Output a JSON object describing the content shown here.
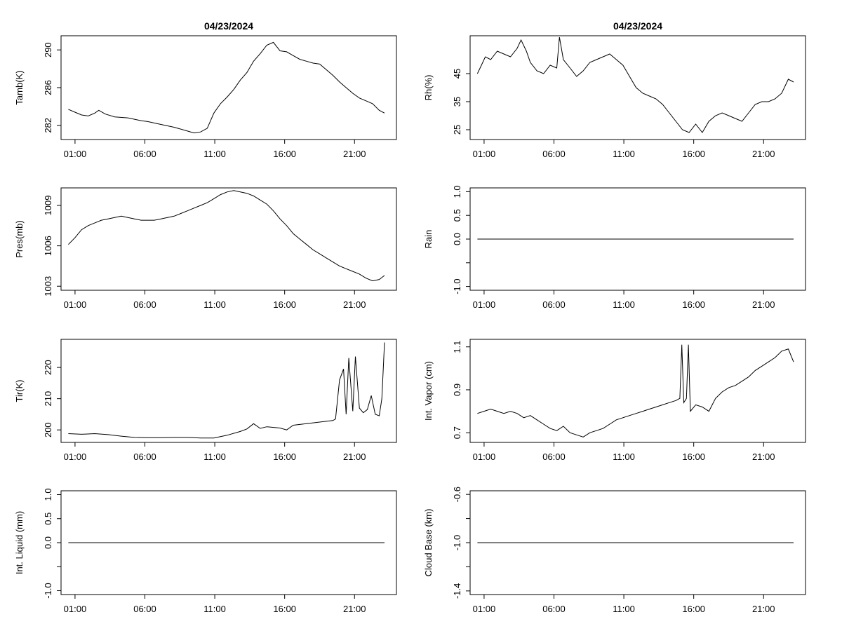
{
  "page": {
    "background": "#ffffff",
    "line_color": "#000000"
  },
  "chart_data": [
    {
      "type": "line",
      "title": "04/23/2024",
      "ylabel": "Tamb(K)",
      "xlim": [
        0,
        24
      ],
      "ylim": [
        280.5,
        291.5
      ],
      "xticks": [
        1,
        6,
        11,
        16,
        21
      ],
      "xtick_labels": [
        "01:00",
        "06:00",
        "11:00",
        "16:00",
        "21:00"
      ],
      "yticks": [
        282,
        286,
        290
      ],
      "ytick_labels": [
        "282",
        "286",
        "290"
      ],
      "series": [
        {
          "x": [
            0,
            0.5,
            1,
            1.5,
            2,
            2.3,
            2.8,
            3.5,
            4.5,
            5.5,
            6,
            7,
            8,
            9,
            9.5,
            10,
            10.5,
            11,
            11.5,
            12,
            12.5,
            13,
            13.5,
            14,
            14.5,
            15,
            15.5,
            16,
            16.5,
            17,
            17.5,
            18,
            18.5,
            19,
            19.5,
            20,
            20.5,
            21,
            21.5,
            22,
            22.5,
            23,
            23.5,
            23.9
          ],
          "y": [
            283.7,
            283.4,
            283.1,
            283.0,
            283.3,
            283.6,
            283.2,
            282.9,
            282.8,
            282.5,
            282.4,
            282.1,
            281.8,
            281.4,
            281.2,
            281.3,
            281.7,
            283.3,
            284.3,
            285.0,
            285.8,
            286.8,
            287.6,
            288.8,
            289.6,
            290.5,
            290.8,
            289.9,
            289.8,
            289.4,
            289.0,
            288.8,
            288.6,
            288.5,
            287.9,
            287.3,
            286.6,
            286.0,
            285.4,
            284.9,
            284.6,
            284.3,
            283.6,
            283.3
          ]
        }
      ]
    },
    {
      "type": "line",
      "title": "04/23/2024",
      "ylabel": "Rh(%)",
      "xlim": [
        0,
        24
      ],
      "ylim": [
        21.5,
        58.5
      ],
      "xticks": [
        1,
        6,
        11,
        16,
        21
      ],
      "xtick_labels": [
        "01:00",
        "06:00",
        "11:00",
        "16:00",
        "21:00"
      ],
      "yticks": [
        25,
        35,
        45
      ],
      "ytick_labels": [
        "25",
        "35",
        "45"
      ],
      "series": [
        {
          "x": [
            0,
            0.3,
            0.6,
            1,
            1.5,
            2,
            2.5,
            3,
            3.3,
            3.7,
            4,
            4.5,
            5,
            5.5,
            6,
            6.2,
            6.5,
            7,
            7.5,
            8,
            8.5,
            9,
            9.5,
            10,
            10.5,
            11,
            11.5,
            12,
            12.5,
            13,
            13.5,
            14,
            14.5,
            15,
            15.5,
            16,
            16.5,
            17,
            17.5,
            18,
            18.5,
            19,
            19.5,
            20,
            20.5,
            21,
            21.5,
            22,
            22.5,
            23,
            23.5,
            23.9
          ],
          "y": [
            45,
            48,
            51,
            50,
            53,
            52,
            51,
            54,
            57,
            53,
            49,
            46,
            45,
            48,
            47,
            58,
            50,
            47,
            44,
            46,
            49,
            50,
            51,
            52,
            50,
            48,
            44,
            40,
            38,
            37,
            36,
            34,
            31,
            28,
            25,
            24,
            27,
            24,
            28,
            30,
            31,
            30,
            29,
            28,
            31,
            34,
            35,
            35,
            36,
            38,
            43,
            42
          ]
        }
      ]
    },
    {
      "type": "line",
      "ylabel": "Pres(mb)",
      "xlim": [
        0,
        24
      ],
      "ylim": [
        1002.7,
        1010.3
      ],
      "xticks": [
        1,
        6,
        11,
        16,
        21
      ],
      "xtick_labels": [
        "01:00",
        "06:00",
        "11:00",
        "16:00",
        "21:00"
      ],
      "yticks": [
        1003,
        1006,
        1009
      ],
      "ytick_labels": [
        "1003",
        "1006",
        "1009"
      ],
      "series": [
        {
          "x": [
            0,
            0.5,
            1,
            1.5,
            2,
            2.5,
            3,
            3.5,
            4,
            4.5,
            5,
            5.5,
            6,
            6.5,
            7,
            7.5,
            8,
            8.5,
            9,
            9.5,
            10,
            10.5,
            11,
            11.5,
            12,
            12.5,
            13,
            13.5,
            14,
            14.5,
            15,
            15.5,
            16,
            16.5,
            17,
            17.5,
            18,
            18.5,
            19,
            19.5,
            20,
            20.5,
            21,
            21.5,
            22,
            22.5,
            23,
            23.5,
            23.9
          ],
          "y": [
            1006.1,
            1006.6,
            1007.2,
            1007.5,
            1007.7,
            1007.9,
            1008.0,
            1008.1,
            1008.2,
            1008.1,
            1008.0,
            1007.9,
            1007.9,
            1007.9,
            1008.0,
            1008.1,
            1008.2,
            1008.4,
            1008.6,
            1008.8,
            1009.0,
            1009.2,
            1009.5,
            1009.8,
            1010.0,
            1010.1,
            1010.0,
            1009.9,
            1009.7,
            1009.4,
            1009.1,
            1008.6,
            1008.0,
            1007.5,
            1006.9,
            1006.5,
            1006.1,
            1005.7,
            1005.4,
            1005.1,
            1004.8,
            1004.5,
            1004.3,
            1004.1,
            1003.9,
            1003.6,
            1003.4,
            1003.5,
            1003.8
          ]
        }
      ]
    },
    {
      "type": "line",
      "ylabel": "Rain",
      "xlim": [
        0,
        24
      ],
      "ylim": [
        -1.08,
        1.08
      ],
      "xticks": [
        1,
        6,
        11,
        16,
        21
      ],
      "xtick_labels": [
        "01:00",
        "06:00",
        "11:00",
        "16:00",
        "21:00"
      ],
      "yticks": [
        -1.0,
        -0.5,
        0.0,
        0.5,
        1.0
      ],
      "ytick_labels": [
        "-1.0",
        "",
        "0.0",
        "0.5",
        "1.0"
      ],
      "series": [
        {
          "x": [
            0,
            23.9
          ],
          "y": [
            0,
            0
          ]
        }
      ]
    },
    {
      "type": "line",
      "ylabel": "Tir(K)",
      "xlim": [
        0,
        24
      ],
      "ylim": [
        196,
        229
      ],
      "xticks": [
        1,
        6,
        11,
        16,
        21
      ],
      "xtick_labels": [
        "01:00",
        "06:00",
        "11:00",
        "16:00",
        "21:00"
      ],
      "yticks": [
        200,
        210,
        220
      ],
      "ytick_labels": [
        "200",
        "210",
        "220"
      ],
      "series": [
        {
          "x": [
            0,
            1,
            2,
            3,
            4,
            5,
            6,
            7,
            8,
            9,
            10,
            11,
            12,
            13,
            13.5,
            14,
            14.5,
            15,
            16,
            16.5,
            17,
            18,
            19,
            20,
            20.2,
            20.5,
            20.8,
            21.0,
            21.2,
            21.5,
            21.7,
            22.0,
            22.3,
            22.6,
            22.9,
            23.2,
            23.5,
            23.7,
            23.9
          ],
          "y": [
            198.8,
            198.6,
            198.8,
            198.5,
            198.0,
            197.6,
            197.5,
            197.5,
            197.6,
            197.6,
            197.4,
            197.4,
            198.3,
            199.5,
            200.3,
            202.0,
            200.5,
            201.0,
            200.6,
            200.0,
            201.5,
            202.0,
            202.5,
            203.0,
            203.5,
            216.0,
            219.5,
            205.0,
            223.0,
            206.0,
            223.5,
            207.0,
            205.5,
            206.5,
            211.0,
            205.0,
            204.5,
            210.0,
            228.0
          ]
        }
      ]
    },
    {
      "type": "line",
      "ylabel": "Int. Vapor (cm)",
      "xlim": [
        0,
        24
      ],
      "ylim": [
        0.655,
        1.135
      ],
      "xticks": [
        1,
        6,
        11,
        16,
        21
      ],
      "xtick_labels": [
        "01:00",
        "06:00",
        "11:00",
        "16:00",
        "21:00"
      ],
      "yticks": [
        0.7,
        0.9,
        1.1
      ],
      "ytick_labels": [
        "0.7",
        "0.9",
        "1.1"
      ],
      "series": [
        {
          "x": [
            0,
            0.5,
            1,
            1.5,
            2,
            2.5,
            3,
            3.5,
            4,
            4.5,
            5,
            5.5,
            6,
            6.5,
            7,
            7.5,
            8,
            8.5,
            9,
            9.5,
            10,
            10.5,
            11,
            11.5,
            12,
            12.5,
            13,
            13.5,
            14,
            14.5,
            15,
            15.3,
            15.45,
            15.6,
            15.8,
            15.95,
            16.1,
            16.5,
            17,
            17.5,
            18,
            18.5,
            19,
            19.5,
            20,
            20.5,
            21,
            21.5,
            22,
            22.5,
            23,
            23.5,
            23.9
          ],
          "y": [
            0.79,
            0.8,
            0.81,
            0.8,
            0.79,
            0.8,
            0.79,
            0.77,
            0.78,
            0.76,
            0.74,
            0.72,
            0.71,
            0.73,
            0.7,
            0.69,
            0.68,
            0.7,
            0.71,
            0.72,
            0.74,
            0.76,
            0.77,
            0.78,
            0.79,
            0.8,
            0.81,
            0.82,
            0.83,
            0.84,
            0.85,
            0.86,
            1.11,
            0.84,
            0.86,
            1.11,
            0.8,
            0.83,
            0.82,
            0.8,
            0.86,
            0.89,
            0.91,
            0.92,
            0.94,
            0.96,
            0.99,
            1.01,
            1.03,
            1.05,
            1.08,
            1.09,
            1.03
          ]
        }
      ]
    },
    {
      "type": "line",
      "ylabel": "Int. Liquid (mm)",
      "xlim": [
        0,
        24
      ],
      "ylim": [
        -1.08,
        1.08
      ],
      "xticks": [
        1,
        6,
        11,
        16,
        21
      ],
      "xtick_labels": [
        "01:00",
        "06:00",
        "11:00",
        "16:00",
        "21:00"
      ],
      "yticks": [
        -1.0,
        -0.5,
        0.0,
        0.5,
        1.0
      ],
      "ytick_labels": [
        "-1.0",
        "",
        "0.0",
        "0.5",
        "1.0"
      ],
      "series": [
        {
          "x": [
            0,
            23.9
          ],
          "y": [
            0,
            0
          ]
        }
      ]
    },
    {
      "type": "line",
      "ylabel": "Cloud Base (km)",
      "xlim": [
        0,
        24
      ],
      "ylim": [
        -1.43,
        -0.57
      ],
      "xticks": [
        1,
        6,
        11,
        16,
        21
      ],
      "xtick_labels": [
        "01:00",
        "06:00",
        "11:00",
        "16:00",
        "21:00"
      ],
      "yticks": [
        -1.4,
        -1.2,
        -1.0,
        -0.8,
        -0.6
      ],
      "ytick_labels": [
        "-1.4",
        "",
        "-1.0",
        "",
        "-0.6"
      ],
      "series": [
        {
          "x": [
            0,
            23.9
          ],
          "y": [
            -1,
            -1
          ]
        }
      ]
    }
  ]
}
